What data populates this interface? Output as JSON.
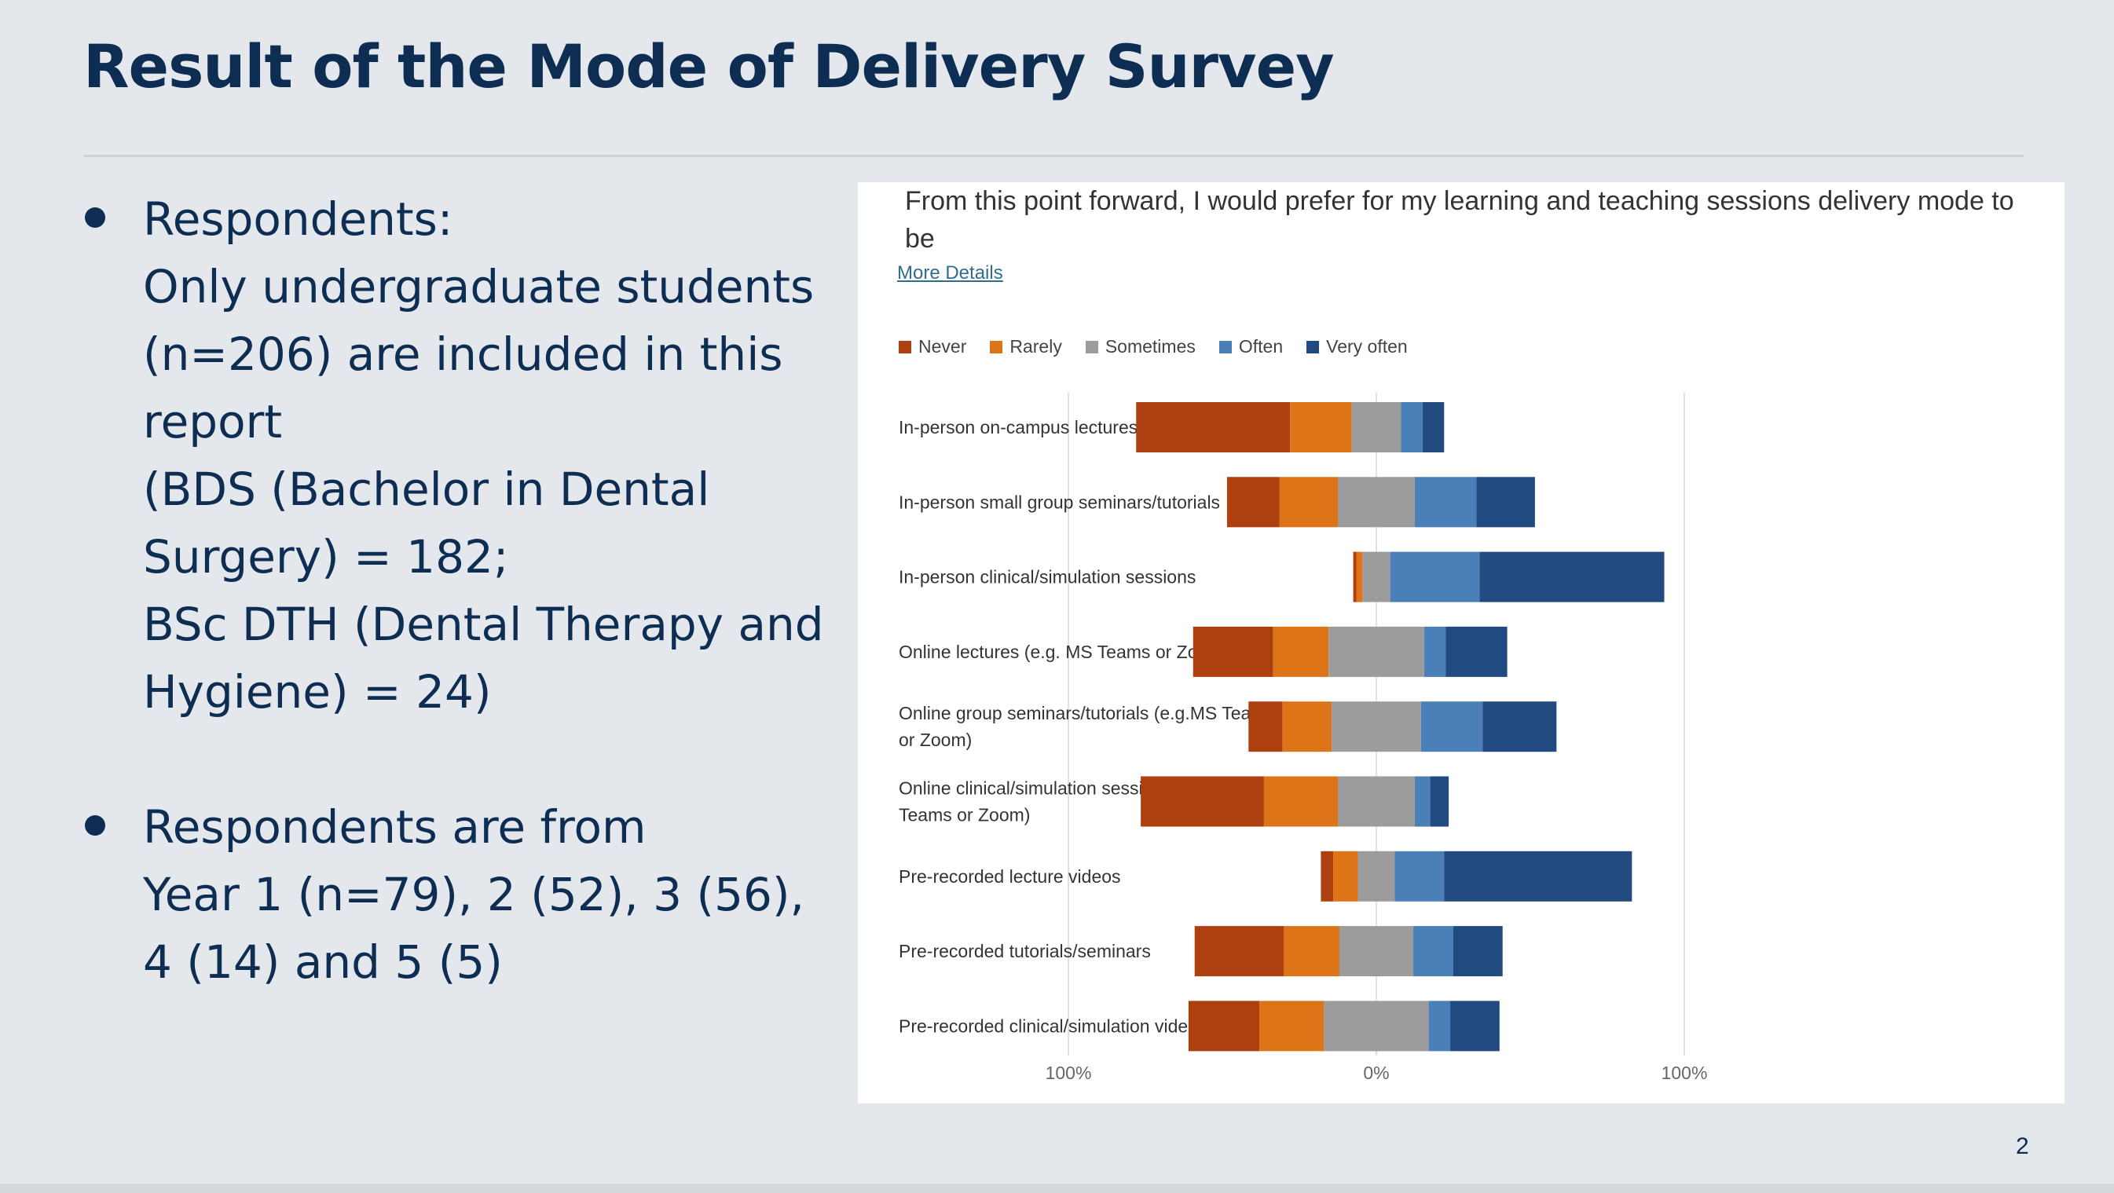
{
  "slide": {
    "title": "Result of the Mode of Delivery Survey",
    "page_number": "2",
    "bullets": [
      {
        "lines": [
          "Respondents:",
          "Only undergraduate students",
          "(n=206) are included in this",
          "report",
          "(BDS (Bachelor in Dental",
          "Surgery) = 182;",
          "BSc DTH (Dental Therapy and",
          "Hygiene) = 24)"
        ]
      },
      {
        "lines": [
          "Respondents are from",
          "Year 1 (n=79), 2 (52), 3 (56),",
          "4 (14) and 5 (5)"
        ]
      }
    ]
  },
  "panel": {
    "question": "From this point forward, I would prefer for my learning and teaching sessions delivery mode to be",
    "more_details": "More Details"
  },
  "colors": {
    "title": "#0e2d52",
    "never": "#ae3f0e",
    "rarely": "#dd7418",
    "sometimes": "#9c9c9c",
    "often": "#4a7fb8",
    "very_often": "#214a80"
  },
  "chart_data": {
    "type": "bar",
    "orientation": "horizontal",
    "stacking": "diverging",
    "neutral_category": "Sometimes",
    "legend_position": "top-left",
    "grid": true,
    "xlim": [
      -100,
      100
    ],
    "x_ticks": [
      "100%",
      "0%",
      "100%"
    ],
    "legend": [
      "Never",
      "Rarely",
      "Sometimes",
      "Often",
      "Very often"
    ],
    "categories": [
      "In-person on-campus lectures",
      "In-person small group seminars/tutorials",
      "In-person clinical/simulation sessions",
      "Online lectures (e.g. MS Teams or Zoom)",
      "Online  group seminars/tutorials (e.g.MS Teams or Zoom)",
      "Online clinical/simulation sessions (e.g. MS Teams or Zoom)",
      "Pre-recorded lecture videos",
      "Pre-recorded tutorials/seminars",
      "Pre-recorded clinical/simulation videos"
    ],
    "series": [
      {
        "name": "Never",
        "color": "#ae3f0e",
        "values": [
          50,
          17,
          1,
          26,
          11,
          40,
          4,
          29,
          23
        ]
      },
      {
        "name": "Rarely",
        "color": "#dd7418",
        "values": [
          20,
          19,
          2,
          18,
          16,
          24,
          8,
          18,
          21
        ]
      },
      {
        "name": "Sometimes",
        "color": "#9c9c9c",
        "values": [
          16,
          25,
          9,
          31,
          29,
          25,
          12,
          24,
          34
        ]
      },
      {
        "name": "Often",
        "color": "#4a7fb8",
        "values": [
          7,
          20,
          29,
          7,
          20,
          5,
          16,
          13,
          7
        ]
      },
      {
        "name": "Very often",
        "color": "#214a80",
        "values": [
          7,
          19,
          60,
          20,
          24,
          6,
          61,
          16,
          16
        ]
      }
    ]
  }
}
